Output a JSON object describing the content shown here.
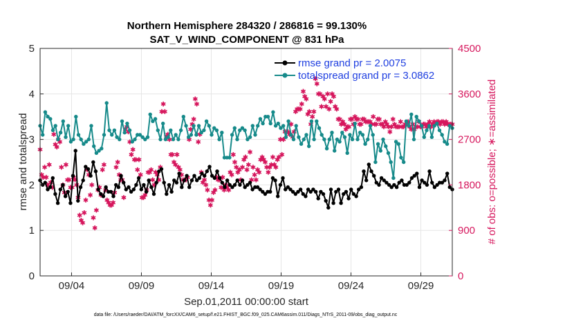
{
  "chart_data": {
    "type": "line",
    "title": [
      "Northern Hemisphere 284320 / 286816 = 99.130%",
      "SAT_V_WIND_COMPONENT @ 831 hPa"
    ],
    "xlabel": "Sep.01,2011 00:00:00 start",
    "ylabel_left": "rmse and totalspread",
    "ylabel_right": "# of obs: o=possible; ∗=assimilated",
    "footer": "data file: /Users/raeder/DAI/ATM_forcXX/CAM6_setup/f.e21.FHIST_BGC.f09_025.CAM6assim.011/Diags_NTrS_2011-09/obs_diag_output.nc",
    "x_tick_labels": [
      "09/04",
      "09/09",
      "09/14",
      "09/19",
      "09/24",
      "09/29"
    ],
    "x_ticks_day": [
      4,
      9,
      14,
      19,
      24,
      29
    ],
    "x_range_day": [
      1.75,
      31.25
    ],
    "ylim_left": [
      0,
      5
    ],
    "yticks_left": [
      "0",
      "1",
      "2",
      "3",
      "4",
      "5"
    ],
    "ylim_right": [
      0,
      4500
    ],
    "yticks_right": [
      "0",
      "900",
      "1800",
      "2700",
      "3600",
      "4500"
    ],
    "grid": true,
    "legend_position": "top-right",
    "colors": {
      "rmse": "#000000",
      "spread": "#168a8a",
      "obs": "#d6175d",
      "legend_text": "#1f3fe0",
      "right_axis": "#d6175d"
    },
    "series": [
      {
        "name": "rmse grand pr = 2.0075",
        "values": [
          2.1,
          2.0,
          2.05,
          1.9,
          1.95,
          2.15,
          1.8,
          1.6,
          1.9,
          2.0,
          1.75,
          1.85,
          1.6,
          2.2,
          2.75,
          1.65,
          1.95,
          2.1,
          2.4,
          2.35,
          2.2,
          2.5,
          2.3,
          1.9,
          1.8,
          1.75,
          1.95,
          1.85,
          1.85,
          1.75,
          2.0,
          1.95,
          2.2,
          2.05,
          1.9,
          1.95,
          1.85,
          1.9,
          2.0,
          2.15,
          1.9,
          2.0,
          1.85,
          2.1,
          1.95,
          1.8,
          2.05,
          2.3,
          2.35,
          2.05,
          1.8,
          2.0,
          1.85,
          2.1,
          2.05,
          2.25,
          1.95,
          2.1,
          2.2,
          1.95,
          2.1,
          2.2,
          2.1,
          2.15,
          2.25,
          2.2,
          2.3,
          2.4,
          2.2,
          2.15,
          2.3,
          2.15,
          2.05,
          1.95,
          2.1,
          2.0,
          1.95,
          2.0,
          2.1,
          2.0,
          2.1,
          1.95,
          2.0,
          2.05,
          1.9,
          1.95,
          1.95,
          1.9,
          1.85,
          1.8,
          1.85,
          1.85,
          2.15,
          2.1,
          1.75,
          2.0,
          2.15,
          1.9,
          1.95,
          1.9,
          1.85,
          1.8,
          1.85,
          1.9,
          1.8,
          1.75,
          1.9,
          1.85,
          1.9,
          1.85,
          1.7,
          1.85,
          1.8,
          1.65,
          1.5,
          1.9,
          1.6,
          1.85,
          1.9,
          1.6,
          1.8,
          1.85,
          1.7,
          1.9,
          1.8,
          1.75,
          1.9,
          1.95,
          2.3,
          2.1,
          2.45,
          2.3,
          2.2,
          2.05,
          2.0,
          2.15,
          2.1,
          2.05,
          2.0,
          1.95,
          2.0,
          1.95,
          2.05,
          2.1,
          2.0,
          2.0,
          2.05,
          2.15,
          2.2,
          2.25,
          1.95,
          2.1,
          2.05,
          2.0,
          2.3,
          2.05,
          1.95,
          2.0,
          2.05,
          2.05,
          2.1,
          2.25,
          1.95,
          1.9
        ]
      },
      {
        "name": "totalspread grand pr = 3.0862",
        "values": [
          3.3,
          3.1,
          3.6,
          3.5,
          3.45,
          3.2,
          3.3,
          3.0,
          3.15,
          3.4,
          3.05,
          3.3,
          2.95,
          3.0,
          3.5,
          3.1,
          3.0,
          2.9,
          2.95,
          3.0,
          3.3,
          2.85,
          2.7,
          2.75,
          2.8,
          3.1,
          3.8,
          3.2,
          3.1,
          3.2,
          3.05,
          3.0,
          3.4,
          3.15,
          3.35,
          3.2,
          2.95,
          3.0,
          3.1,
          3.1,
          3.05,
          3.0,
          3.05,
          3.55,
          3.4,
          3.45,
          3.2,
          3.0,
          3.35,
          3.0,
          3.05,
          3.2,
          3.0,
          3.1,
          3.0,
          3.2,
          3.5,
          3.3,
          3.05,
          3.1,
          3.3,
          3.1,
          3.3,
          3.15,
          3.2,
          3.4,
          3.3,
          3.1,
          3.25,
          3.2,
          3.0,
          3.15,
          2.6,
          2.6,
          2.6,
          3.1,
          3.25,
          3.0,
          3.2,
          3.25,
          3.2,
          3.0,
          3.05,
          3.3,
          3.1,
          3.3,
          3.45,
          3.35,
          3.5,
          3.5,
          3.35,
          3.6,
          3.3,
          3.35,
          3.25,
          3.3,
          3.05,
          3.4,
          3.1,
          3.0,
          3.3,
          3.05,
          2.9,
          3.0,
          3.1,
          2.85,
          3.4,
          3.0,
          3.4,
          3.25,
          3.1,
          3.0,
          2.8,
          3.0,
          3.15,
          2.75,
          3.0,
          2.95,
          3.15,
          3.05,
          2.7,
          3.1,
          3.0,
          3.35,
          3.0,
          3.15,
          3.1,
          2.9,
          3.0,
          3.3,
          3.1,
          2.5,
          2.9,
          2.75,
          3.0,
          2.85,
          2.7,
          2.5,
          2.15,
          2.95,
          2.9,
          2.6,
          2.5,
          3.4,
          3.3,
          3.55,
          3.0,
          3.5,
          3.4,
          3.3,
          3.05,
          3.2,
          3.3,
          3.05,
          3.3,
          3.35,
          3.2,
          3.1,
          2.95,
          2.9,
          3.3,
          3.25
        ]
      }
    ],
    "obs_series": {
      "name": "# of obs",
      "values": [
        2500,
        2000,
        1950,
        2150,
        1950,
        1800,
        2200,
        1850,
        1750,
        2800,
        2600,
        2550,
        2700,
        2650,
        2150,
        1800,
        1650,
        2200,
        1900,
        1900,
        1750,
        1750,
        1950,
        1900,
        1800,
        1550,
        1200,
        1100,
        1050,
        1250,
        1500,
        2100,
        2000,
        1600,
        1800,
        1150,
        950,
        1300,
        1700,
        1750,
        1600,
        2100,
        2200,
        1700,
        1500,
        1450,
        1400,
        1400,
        1450,
        1650,
        2150,
        2250,
        2000,
        1900,
        1900,
        1550,
        2900,
        2950,
        2850,
        2650,
        2400,
        2500,
        2300,
        2300,
        2100,
        2300,
        2000,
        1550,
        1550,
        1600,
        1700,
        2050,
        2050,
        2100,
        1900,
        1800,
        2050,
        2000,
        1900,
        2150,
        3250,
        3400,
        3250,
        2750,
        2800,
        2700,
        2400,
        2400,
        2250,
        2200,
        2400,
        2150,
        2100,
        2000,
        1900,
        1900,
        1900,
        1950,
        2700,
        2900,
        3000,
        3100,
        3500,
        3400,
        2650,
        2800,
        2050,
        1850,
        1900,
        1800,
        1700,
        1500,
        1400,
        1500,
        1650,
        1700,
        1950,
        1900,
        1900,
        1750,
        1950,
        1700,
        1800,
        1750,
        1700,
        2050,
        2000,
        2400,
        2250,
        2150,
        2050,
        2100,
        1900,
        2150,
        2300,
        2350,
        2100,
        2200,
        2450,
        1900,
        2150,
        2000,
        1900,
        2100,
        2050,
        2300,
        2350,
        2300,
        2250,
        2150,
        2050,
        2150,
        2200,
        2350,
        2200,
        2150,
        2300,
        2350,
        2700,
        2400,
        2700,
        2850,
        2850,
        2850,
        2800,
        3000,
        2750,
        2850,
        3250,
        3300,
        3300,
        3300,
        3400,
        3650,
        3550,
        3500,
        3200,
        3250,
        3000,
        3150,
        3250,
        3900,
        3800,
        3600,
        3600,
        3350,
        3550,
        3500,
        3350,
        3600,
        3300,
        3450,
        3600,
        3550,
        3350,
        3300,
        3100,
        3100,
        3000,
        3050,
        3000,
        2900,
        2950,
        2950,
        3100,
        3100,
        3000,
        3150,
        3100,
        3100,
        3000,
        3000,
        3100,
        3100,
        3050,
        3050,
        3050,
        3050,
        3000,
        3150,
        3000,
        3000,
        3100,
        3100,
        3000,
        3000,
        2950,
        3050,
        3000,
        2950,
        2850,
        2950,
        3100,
        3000,
        2950,
        2950,
        2950,
        3050,
        2950,
        2950,
        3000,
        3000,
        3050,
        2950,
        2900,
        3000,
        2900,
        2950,
        2950,
        3050,
        2950,
        2950,
        3000,
        3000,
        2950,
        3000,
        3050,
        2950,
        3000,
        3050,
        3000,
        3050,
        3050,
        3000,
        3050,
        3050,
        3000,
        3050,
        3000,
        3000,
        3000,
        3000
      ]
    }
  }
}
